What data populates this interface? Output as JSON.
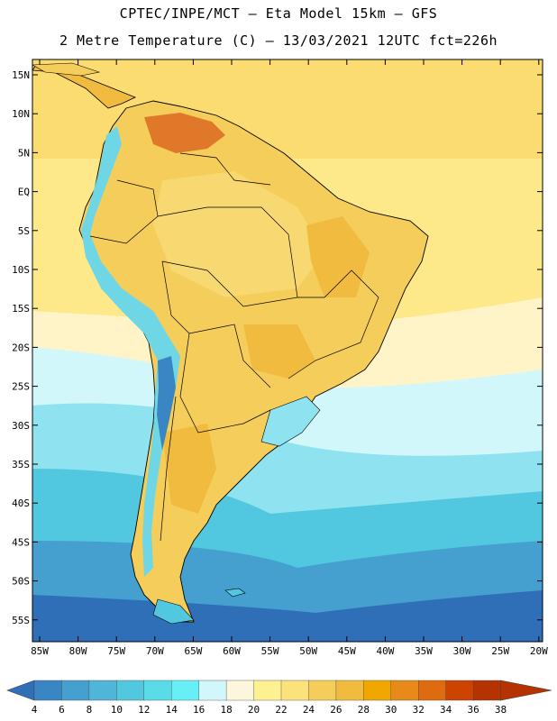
{
  "header": {
    "line1": "CPTEC/INPE/MCT –  Eta Model 15km – GFS",
    "line2": "2 Metre Temperature (C) – 13/03/2021 12UTC fct=226h"
  },
  "axes": {
    "lat_labels": [
      "15N",
      "10N",
      "5N",
      "EQ",
      "5S",
      "10S",
      "15S",
      "20S",
      "25S",
      "30S",
      "35S",
      "40S",
      "45S",
      "50S",
      "55S"
    ],
    "lon_labels": [
      "85W",
      "80W",
      "75W",
      "70W",
      "65W",
      "60W",
      "55W",
      "50W",
      "45W",
      "40W",
      "35W",
      "30W",
      "25W",
      "20W"
    ]
  },
  "colorbar": {
    "labels": [
      "4",
      "6",
      "8",
      "10",
      "12",
      "14",
      "16",
      "18",
      "20",
      "22",
      "24",
      "26",
      "28",
      "30",
      "32",
      "34",
      "36",
      "38"
    ],
    "colors": [
      "#2f6fb8",
      "#3a86c4",
      "#45a0cf",
      "#4fb6d9",
      "#52c8e0",
      "#5adbe8",
      "#66f0f5",
      "#d2f7fb",
      "#fdf6dc",
      "#fdf191",
      "#fbe27a",
      "#f5cd5a",
      "#f0bb3e",
      "#f0a800",
      "#e88a1a",
      "#de6b10",
      "#cc4400",
      "#b53300"
    ]
  },
  "colors": {
    "ocean_cold_deep": "#2f6fb8",
    "ocean_cold": "#45a0cf",
    "ocean_mid": "#52c8e0",
    "ocean_cool": "#8fe3f0",
    "ocean_pale": "#d2f7fb",
    "ocean_warm": "#fde88a",
    "land_warm": "#f5cd5a",
    "land_hot": "#e0782a",
    "andes": "#6fd6e6",
    "frame": "#000000"
  }
}
